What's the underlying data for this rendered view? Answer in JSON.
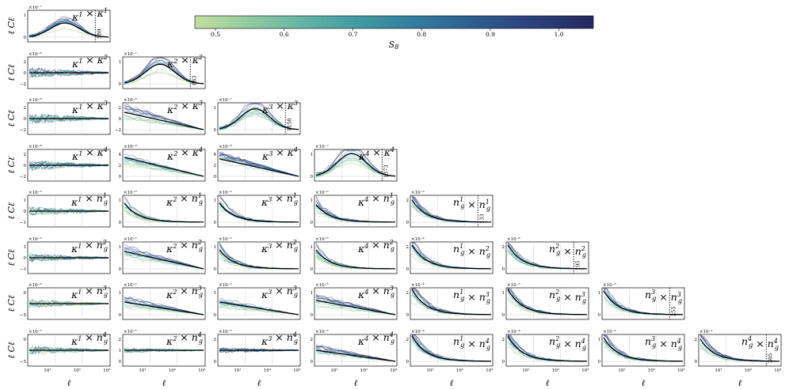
{
  "chart_data": {
    "type": "line",
    "colorbar": {
      "label": "S8",
      "label_base": "S",
      "label_sub": "8",
      "range": [
        0.47,
        1.05
      ],
      "ticks": [
        "0.5",
        "0.6",
        "0.7",
        "0.8",
        "0.9",
        "1.0"
      ],
      "colormap": [
        "#c2df9f",
        "#8fc9a1",
        "#5fb1a4",
        "#3e97a2",
        "#31789c",
        "#2f5a8f",
        "#2c3f7c",
        "#232a5c"
      ]
    },
    "row_ylabel": "ℓ Cℓ",
    "xlabel": "ℓ",
    "xscale": "log",
    "x_ticks_shown": [
      "10¹",
      "10²",
      "10³"
    ],
    "panels": [
      {
        "row": 0,
        "col": 0,
        "tracer_a": "κ",
        "a_idx": "1",
        "tracer_b": "κ",
        "b_idx": "1",
        "sci": "×10⁻⁷",
        "yticks": [
          "0",
          "1"
        ],
        "cut": "589",
        "shape": "hump",
        "peak": 0.45
      },
      {
        "row": 1,
        "col": 0,
        "tracer_a": "κ",
        "a_idx": "1",
        "tracer_b": "κ",
        "b_idx": "2",
        "sci": "×10⁻⁸",
        "yticks": [
          "−2",
          "0",
          "2"
        ],
        "shape": "flat",
        "peak": 0.6
      },
      {
        "row": 1,
        "col": 1,
        "tracer_a": "κ",
        "a_idx": "2",
        "tracer_b": "κ",
        "b_idx": "2",
        "sci": "×10⁻⁷",
        "yticks": [
          "0",
          "1"
        ],
        "cut": "883",
        "shape": "hump",
        "peak": 0.62
      },
      {
        "row": 2,
        "col": 0,
        "tracer_a": "κ",
        "a_idx": "1",
        "tracer_b": "κ",
        "b_idx": "3",
        "sci": "×10⁻⁸",
        "yticks": [
          "−2",
          "0",
          "2"
        ],
        "shape": "flat",
        "peak": 0.6
      },
      {
        "row": 2,
        "col": 1,
        "tracer_a": "κ",
        "a_idx": "2",
        "tracer_b": "κ",
        "b_idx": "3",
        "sci": "×10⁻⁸",
        "yticks": [
          "−2",
          "0",
          "2"
        ],
        "shape": "decay",
        "peak": 0.55
      },
      {
        "row": 2,
        "col": 2,
        "tracer_a": "κ",
        "a_idx": "3",
        "tracer_b": "κ",
        "b_idx": "3",
        "sci": "×10⁻⁷",
        "yticks": [
          "0",
          "1"
        ],
        "cut": "1150",
        "shape": "hump",
        "peak": 0.66
      },
      {
        "row": 3,
        "col": 0,
        "tracer_a": "κ",
        "a_idx": "1",
        "tracer_b": "κ",
        "b_idx": "4",
        "sci": "×10⁻⁸",
        "yticks": [
          "−2",
          "0",
          "2"
        ],
        "shape": "flat",
        "peak": 0.6
      },
      {
        "row": 3,
        "col": 1,
        "tracer_a": "κ",
        "a_idx": "2",
        "tracer_b": "κ",
        "b_idx": "4",
        "sci": "×10⁻⁸",
        "yticks": [
          "0",
          "2",
          "4"
        ],
        "shape": "decay",
        "peak": 0.6
      },
      {
        "row": 3,
        "col": 2,
        "tracer_a": "κ",
        "a_idx": "3",
        "tracer_b": "κ",
        "b_idx": "4",
        "sci": "×10⁻⁸",
        "yticks": [
          "0",
          "2",
          "4"
        ],
        "shape": "decay",
        "peak": 0.55
      },
      {
        "row": 3,
        "col": 3,
        "tracer_a": "κ",
        "a_idx": "4",
        "tracer_b": "κ",
        "b_idx": "4",
        "sci": "×10⁻⁷",
        "yticks": [
          "0",
          "1"
        ],
        "cut": "1373",
        "shape": "hump",
        "peak": 0.72
      },
      {
        "row": 4,
        "col": 0,
        "tracer_a": "κ",
        "a_idx": "1",
        "tracer_b": "n",
        "b_idx": "1",
        "b_sub": "g",
        "sci": "×10⁻⁵",
        "yticks": [
          "−1",
          "0",
          "1"
        ],
        "shape": "flat",
        "peak": 0.5
      },
      {
        "row": 4,
        "col": 1,
        "tracer_a": "κ",
        "a_idx": "2",
        "tracer_b": "n",
        "b_idx": "1",
        "b_sub": "g",
        "sci": "×10⁻⁵",
        "yticks": [
          "0",
          "1"
        ],
        "shape": "steep",
        "peak": 0.6
      },
      {
        "row": 4,
        "col": 2,
        "tracer_a": "κ",
        "a_idx": "3",
        "tracer_b": "n",
        "b_idx": "1",
        "b_sub": "g",
        "sci": "×10⁻⁵",
        "yticks": [
          "0",
          "1"
        ],
        "shape": "steep",
        "peak": 0.6
      },
      {
        "row": 4,
        "col": 3,
        "tracer_a": "κ",
        "a_idx": "4",
        "tracer_b": "n",
        "b_idx": "1",
        "b_sub": "g",
        "sci": "×10⁻⁵",
        "yticks": [
          "0",
          "1"
        ],
        "shape": "steep",
        "peak": 0.55
      },
      {
        "row": 4,
        "col": 4,
        "tracer_a": "n",
        "a_idx": "1",
        "a_sub": "g",
        "tracer_b": "n",
        "b_idx": "1",
        "b_sub": "g",
        "sci": "×10⁻³",
        "yticks": [
          "0",
          "2"
        ],
        "cut": "133",
        "shape": "steep",
        "peak": 0.7
      },
      {
        "row": 5,
        "col": 0,
        "tracer_a": "κ",
        "a_idx": "1",
        "tracer_b": "n",
        "b_idx": "2",
        "b_sub": "g",
        "sci": "×10⁻⁵",
        "yticks": [
          "−1",
          "0",
          "1"
        ],
        "shape": "flat",
        "peak": 0.5
      },
      {
        "row": 5,
        "col": 1,
        "tracer_a": "κ",
        "a_idx": "2",
        "tracer_b": "n",
        "b_idx": "2",
        "b_sub": "g",
        "sci": "×10⁻⁵",
        "yticks": [
          "0",
          "1"
        ],
        "shape": "decay",
        "peak": 0.55
      },
      {
        "row": 5,
        "col": 2,
        "tracer_a": "κ",
        "a_idx": "3",
        "tracer_b": "n",
        "b_idx": "2",
        "b_sub": "g",
        "sci": "×10⁻⁵",
        "yticks": [
          "0",
          "1"
        ],
        "shape": "steep",
        "peak": 0.6
      },
      {
        "row": 5,
        "col": 3,
        "tracer_a": "κ",
        "a_idx": "4",
        "tracer_b": "n",
        "b_idx": "2",
        "b_sub": "g",
        "sci": "×10⁻⁵",
        "yticks": [
          "0",
          "1"
        ],
        "shape": "steep",
        "peak": 0.6
      },
      {
        "row": 5,
        "col": 4,
        "tracer_a": "n",
        "a_idx": "1",
        "a_sub": "g",
        "tracer_b": "n",
        "b_idx": "2",
        "b_sub": "g",
        "sci": "×10⁻⁴",
        "yticks": [
          "0",
          "2"
        ],
        "shape": "steep",
        "peak": 0.75
      },
      {
        "row": 5,
        "col": 5,
        "tracer_a": "n",
        "a_idx": "2",
        "a_sub": "g",
        "tracer_b": "n",
        "b_idx": "2",
        "b_sub": "g",
        "sci": "×10⁻³",
        "yticks": [
          "0",
          "2"
        ],
        "cut": "195",
        "shape": "steep",
        "peak": 0.75
      },
      {
        "row": 6,
        "col": 0,
        "tracer_a": "κ",
        "a_idx": "1",
        "tracer_b": "n",
        "b_idx": "3",
        "b_sub": "g",
        "sci": "×10⁻⁶",
        "yticks": [
          "−5",
          "0"
        ],
        "shape": "flat",
        "peak": 0.5
      },
      {
        "row": 6,
        "col": 1,
        "tracer_a": "κ",
        "a_idx": "2",
        "tracer_b": "n",
        "b_idx": "3",
        "b_sub": "g",
        "sci": "×10⁻⁵",
        "yticks": [
          "0",
          "1"
        ],
        "shape": "decay",
        "peak": 0.4
      },
      {
        "row": 6,
        "col": 2,
        "tracer_a": "κ",
        "a_idx": "3",
        "tracer_b": "n",
        "b_idx": "3",
        "b_sub": "g",
        "sci": "×10⁻⁵",
        "yticks": [
          "0",
          "1"
        ],
        "shape": "decay",
        "peak": 0.4
      },
      {
        "row": 6,
        "col": 3,
        "tracer_a": "κ",
        "a_idx": "4",
        "tracer_b": "n",
        "b_idx": "3",
        "b_sub": "g",
        "sci": "×10⁻⁵",
        "yticks": [
          "0",
          "1"
        ],
        "shape": "decay",
        "peak": 0.45
      },
      {
        "row": 6,
        "col": 4,
        "tracer_a": "n",
        "a_idx": "1",
        "a_sub": "g",
        "tracer_b": "n",
        "b_idx": "3",
        "b_sub": "g",
        "sci": "×10⁻⁴",
        "yticks": [
          "0",
          "2"
        ],
        "shape": "steep",
        "peak": 0.8
      },
      {
        "row": 6,
        "col": 5,
        "tracer_a": "n",
        "a_idx": "2",
        "a_sub": "g",
        "tracer_b": "n",
        "b_idx": "3",
        "b_sub": "g",
        "sci": "×10⁻³",
        "yticks": [
          "0",
          "1"
        ],
        "shape": "steep",
        "peak": 0.8
      },
      {
        "row": 6,
        "col": 6,
        "tracer_a": "n",
        "a_idx": "3",
        "a_sub": "g",
        "tracer_b": "n",
        "b_idx": "3",
        "b_sub": "g",
        "sci": "×10⁻³",
        "yticks": [
          "0",
          "1"
        ],
        "cut": "255",
        "shape": "steep",
        "peak": 0.75
      },
      {
        "row": 7,
        "col": 0,
        "tracer_a": "κ",
        "a_idx": "1",
        "tracer_b": "n",
        "b_idx": "4",
        "b_sub": "g",
        "sci": "×10⁻⁶",
        "yticks": [
          "−5",
          "0"
        ],
        "shape": "flat",
        "peak": 0.5
      },
      {
        "row": 7,
        "col": 1,
        "tracer_a": "κ",
        "a_idx": "2",
        "tracer_b": "n",
        "b_idx": "4",
        "b_sub": "g",
        "sci": "×10⁻⁵",
        "yticks": [
          "0",
          "1",
          "2"
        ],
        "shape": "flat",
        "peak": 0.3
      },
      {
        "row": 7,
        "col": 2,
        "tracer_a": "κ",
        "a_idx": "3",
        "tracer_b": "n",
        "b_idx": "4",
        "b_sub": "g",
        "sci": "×10⁻⁵",
        "yticks": [
          "0",
          "2"
        ],
        "shape": "flat",
        "peak": 0.3
      },
      {
        "row": 7,
        "col": 3,
        "tracer_a": "κ",
        "a_idx": "4",
        "tracer_b": "n",
        "b_idx": "4",
        "b_sub": "g",
        "sci": "×10⁻⁵",
        "yticks": [
          "0",
          "2"
        ],
        "shape": "decay",
        "peak": 0.35
      },
      {
        "row": 7,
        "col": 4,
        "tracer_a": "n",
        "a_idx": "1",
        "a_sub": "g",
        "tracer_b": "n",
        "b_idx": "4",
        "b_sub": "g",
        "sci": "×10⁻⁴",
        "yticks": [
          "0",
          "2"
        ],
        "shape": "steep",
        "peak": 0.8
      },
      {
        "row": 7,
        "col": 5,
        "tracer_a": "n",
        "a_idx": "2",
        "a_sub": "g",
        "tracer_b": "n",
        "b_idx": "4",
        "b_sub": "g",
        "sci": "×10⁻⁴",
        "yticks": [
          "0",
          "2"
        ],
        "shape": "steep",
        "peak": 0.8
      },
      {
        "row": 7,
        "col": 6,
        "tracer_a": "n",
        "a_idx": "3",
        "a_sub": "g",
        "tracer_b": "n",
        "b_idx": "4",
        "b_sub": "g",
        "sci": "×10⁻²",
        "yticks": [
          "0",
          "1"
        ],
        "shape": "steep",
        "peak": 0.75
      },
      {
        "row": 7,
        "col": 7,
        "tracer_a": "n",
        "a_idx": "4",
        "a_sub": "g",
        "tracer_b": "n",
        "b_idx": "4",
        "b_sub": "g",
        "sci": "×10⁻¹",
        "yticks": [
          "0",
          "2"
        ],
        "cut": "305",
        "shape": "steep",
        "peak": 0.7
      }
    ]
  }
}
